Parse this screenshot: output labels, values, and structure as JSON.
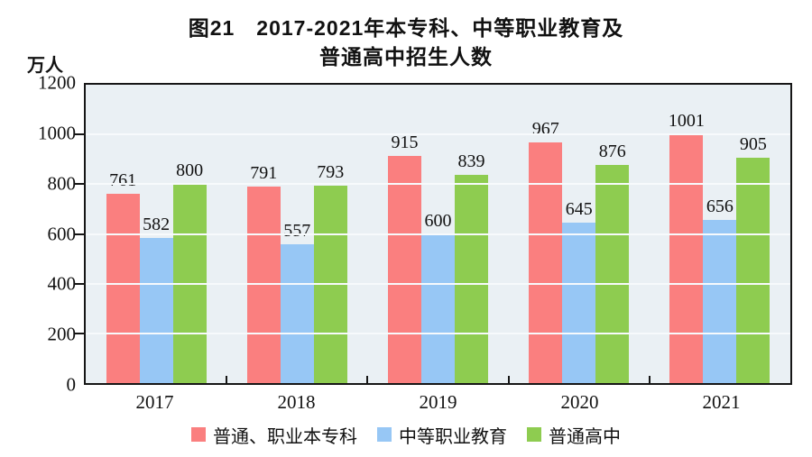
{
  "chart_data": {
    "type": "bar",
    "title": "图21 2017-2021年本专科、中等职业教育及普通高中招生人数",
    "title_lines": [
      "图21　2017-2021年本专科、中等职业教育及",
      "普通高中招生人数"
    ],
    "ylabel": "万人",
    "xlabel": "",
    "categories": [
      "2017",
      "2018",
      "2019",
      "2020",
      "2021"
    ],
    "series": [
      {
        "name": "普通、职业本专科",
        "color": "#FA7F7F",
        "values": [
          761,
          791,
          915,
          967,
          1001
        ]
      },
      {
        "name": "中等职业教育",
        "color": "#97C7F5",
        "values": [
          582,
          557,
          600,
          645,
          656
        ]
      },
      {
        "name": "普通高中",
        "color": "#8ECC50",
        "values": [
          800,
          793,
          839,
          876,
          905
        ]
      }
    ],
    "ylim": [
      0,
      1200
    ],
    "yticks": [
      0,
      200,
      400,
      600,
      800,
      1000,
      1200
    ],
    "grid": true,
    "bar_value_labels": true,
    "legend_position": "bottom",
    "plot_background": "#EAF0F4",
    "axis_color": "#161616"
  }
}
